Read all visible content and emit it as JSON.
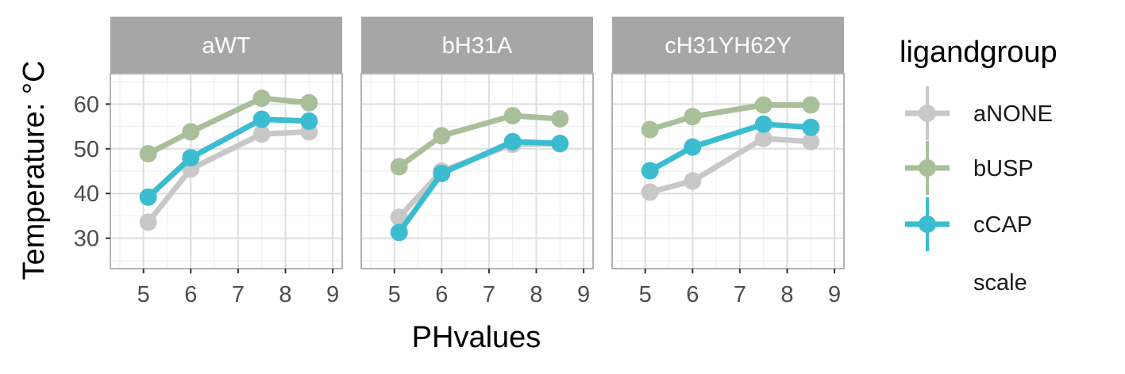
{
  "chart_data": {
    "type": "line",
    "facets": [
      {
        "label": "aWT",
        "series": [
          {
            "name": "aNONE",
            "x": [
              5.1,
              6.0,
              7.5,
              8.5
            ],
            "values": [
              33.6,
              45.5,
              53.3,
              53.8
            ]
          },
          {
            "name": "bUSP",
            "x": [
              5.1,
              6.0,
              7.5,
              8.5
            ],
            "values": [
              48.9,
              53.8,
              61.3,
              60.3
            ]
          },
          {
            "name": "cCAP",
            "x": [
              5.1,
              6.0,
              7.5,
              8.5
            ],
            "values": [
              39.2,
              48.0,
              56.6,
              56.2
            ]
          }
        ]
      },
      {
        "label": "bH31A",
        "series": [
          {
            "name": "aNONE",
            "x": [
              5.1,
              6.0,
              7.5,
              8.5
            ],
            "values": [
              34.7,
              45.0,
              51.0,
              51.1
            ]
          },
          {
            "name": "bUSP",
            "x": [
              5.1,
              6.0,
              7.5,
              8.5
            ],
            "values": [
              46.0,
              52.9,
              57.4,
              56.7
            ]
          },
          {
            "name": "cCAP",
            "x": [
              5.1,
              6.0,
              7.5,
              8.5
            ],
            "values": [
              31.3,
              44.5,
              51.6,
              51.2
            ]
          }
        ]
      },
      {
        "label": "cH31YH62Y",
        "series": [
          {
            "name": "aNONE",
            "x": [
              5.1,
              6.0,
              7.5,
              8.5
            ],
            "values": [
              40.3,
              42.8,
              52.3,
              51.6
            ]
          },
          {
            "name": "bUSP",
            "x": [
              5.1,
              6.0,
              7.5,
              8.5
            ],
            "values": [
              54.3,
              57.2,
              59.8,
              59.8
            ]
          },
          {
            "name": "cCAP",
            "x": [
              5.1,
              6.0,
              7.5,
              8.5
            ],
            "values": [
              45.1,
              50.4,
              55.5,
              54.8
            ]
          }
        ]
      }
    ],
    "xlabel": "PHvalues",
    "ylabel": "Temperature: °C",
    "xlim": [
      4.3,
      9.2
    ],
    "ylim": [
      23.2,
      66.8
    ],
    "xticks": [
      "5",
      "6",
      "7",
      "8",
      "9"
    ],
    "xtick_values": [
      5,
      6,
      7,
      8,
      9
    ],
    "yticks": [
      "30",
      "40",
      "50",
      "60"
    ],
    "ytick_values": [
      30,
      40,
      50,
      60
    ],
    "grid": true,
    "legend": {
      "title": "ligandgroup",
      "position": "right",
      "entries": [
        "aNONE",
        "bUSP",
        "cCAP",
        "scale"
      ]
    },
    "colors": {
      "aNONE": "#c8c8c8",
      "bUSP": "#a8bf9a",
      "cCAP": "#3bbcd0",
      "strip_bg": "#a6a6a6",
      "panel_border": "#b3b3b3",
      "grid_major": "#dedede",
      "grid_minor": "#efefef"
    }
  }
}
